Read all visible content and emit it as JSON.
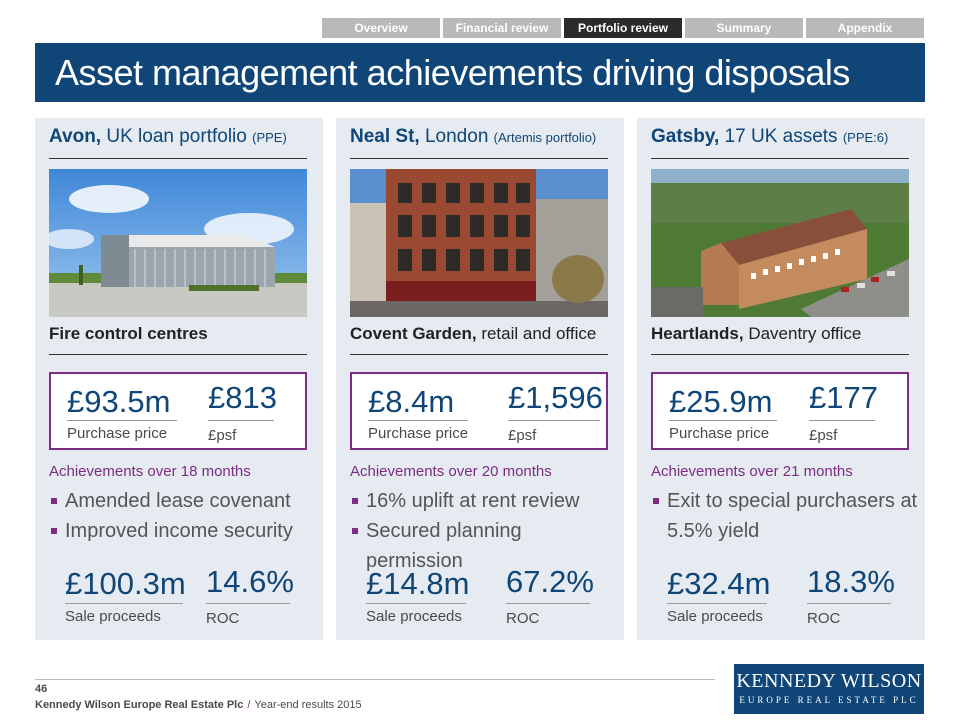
{
  "nav": {
    "tabs": [
      {
        "label": "Overview",
        "active": false
      },
      {
        "label": "Financial review",
        "active": false
      },
      {
        "label": "Portfolio review",
        "active": true
      },
      {
        "label": "Summary",
        "active": false
      },
      {
        "label": "Appendix",
        "active": false
      }
    ]
  },
  "title": "Asset management achievements driving disposals",
  "columns": [
    {
      "head_bold": "Avon,",
      "head_rest": " UK loan portfolio ",
      "head_small": "(PPE)",
      "sub_bold": "Fire control centres",
      "sub_rest": "",
      "purchase_price": "£93.5m",
      "purchase_label": "Purchase price",
      "psf": "£813",
      "psf_label": "£psf",
      "achievements_heading": "Achievements over 18 months",
      "achievements": [
        "Amended lease covenant",
        "Improved income security"
      ],
      "sale_proceeds": "£100.3m",
      "sale_label": "Sale proceeds",
      "roc": "14.6%",
      "roc_label": "ROC"
    },
    {
      "head_bold": "Neal St,",
      "head_rest": " London ",
      "head_small": "(Artemis portfolio)",
      "sub_bold": "Covent Garden,",
      "sub_rest": " retail and office",
      "purchase_price": "£8.4m",
      "purchase_label": "Purchase price",
      "psf": "£1,596",
      "psf_label": "£psf",
      "achievements_heading": "Achievements over 20 months",
      "achievements": [
        "16% uplift at rent review",
        "Secured planning permission"
      ],
      "sale_proceeds": "£14.8m",
      "sale_label": "Sale proceeds",
      "roc": "67.2%",
      "roc_label": "ROC"
    },
    {
      "head_bold": "Gatsby,",
      "head_rest": " 17 UK assets ",
      "head_small": "(PPE:6)",
      "sub_bold": "Heartlands,",
      "sub_rest": " Daventry office",
      "purchase_price": "£25.9m",
      "purchase_label": "Purchase price",
      "psf": "£177",
      "psf_label": "£psf",
      "achievements_heading": "Achievements over 21 months",
      "achievements": [
        "Exit to special purchasers at 5.5% yield"
      ],
      "sale_proceeds": "£32.4m",
      "sale_label": "Sale proceeds",
      "roc": "18.3%",
      "roc_label": "ROC"
    }
  ],
  "footer": {
    "page_number": "46",
    "company": "Kennedy Wilson Europe Real Estate Plc",
    "separator": "/",
    "report": "Year-end results 2015",
    "logo_line1": "KENNEDY WILSON",
    "logo_line2": "EUROPE REAL ESTATE PLC"
  },
  "colors": {
    "brand_blue": "#0f4577",
    "accent_purple": "#7b2c83",
    "panel_bg": "#e6ebf2",
    "tab_inactive": "#b9b9b9",
    "tab_active": "#2b2b2b"
  }
}
